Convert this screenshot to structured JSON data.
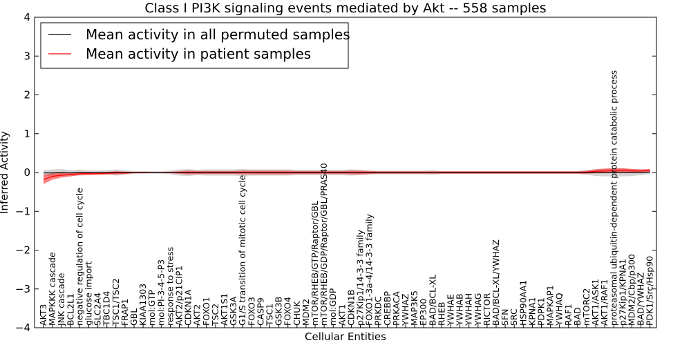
{
  "chart_data": {
    "type": "line",
    "title": "Class I PI3K signaling events mediated by Akt -- 558 samples",
    "xlabel": "Cellular Entities",
    "ylabel": "Inferred Activity",
    "ylim": [
      -4,
      4
    ],
    "yticks": [
      "−4",
      "−3",
      "−2",
      "−1",
      "0",
      "1",
      "2",
      "3",
      "4"
    ],
    "legend": {
      "position": "top-left",
      "entries": [
        {
          "label": "Mean activity in all permuted samples",
          "color": "#000000"
        },
        {
          "label": "Mean activity in patient samples",
          "color": "#ff0000"
        }
      ]
    },
    "categories": [
      "AKT3",
      "MAPKKK cascade",
      "JNK cascade",
      "BCL2L1",
      "negative regulation of cell cycle",
      "glucose import",
      "SLC2A4",
      "TBC1D4",
      "TSC1/TSC2",
      "FRAP1",
      "GBL",
      "KIAA1303",
      "mol:GTP",
      "mol:PI-3-4-5-P3",
      "response to stress",
      "AKT2/p21CIP1",
      "CDKN1A",
      "AKT2",
      "FOXO1",
      "TSC2",
      "AKT1S1",
      "GSK3A",
      "G1/S transition of mitotic cell cycle",
      "FOXO3",
      "CASP9",
      "TSC1",
      "GSK3B",
      "FOXO4",
      "CHUK",
      "MDM2",
      "mTOR/RHEB/GTP/Raptor/GBL",
      "mTOR/RHEB/GDP/Raptor/GBL/PRAS40",
      "mol:GDP",
      "AKT1",
      "CDKN1B",
      "p27Kip1/14-3-3 family",
      "FOXO1-3a-4/14-3-3 family",
      "PRKDC",
      "CREBBP",
      "PRKACA",
      "YWHAZ",
      "MAP3K5",
      "EP300",
      "BAD/BCL-XL",
      "RHEB",
      "YWHAE",
      "YWHAB",
      "YWHAH",
      "YWHAG",
      "RICTOR",
      "BAD/BCL-XL/YWHAZ",
      "SFN",
      "SRC",
      "HSP90AA1",
      "KPNA1",
      "PDPK1",
      "MAPKAP1",
      "YWHAQ",
      "RAF1",
      "BAD",
      "mTORC2",
      "AKT1/ASK1",
      "AKT1/RAF1",
      "proteasomal ubiquitin-dependent protein catabolic process",
      "p27Kip1/KPNA1",
      "MDM2/Cbp/p300",
      "BAD/YWHAZ",
      "PDK1/Src/Hsp90"
    ],
    "series": [
      {
        "name": "Mean activity in patient samples",
        "color": "#ff0000",
        "values": [
          -0.18,
          -0.1,
          -0.07,
          -0.05,
          -0.03,
          -0.03,
          -0.03,
          -0.02,
          -0.01,
          -0.01,
          0,
          0,
          0,
          0,
          0,
          0,
          0,
          0,
          0,
          0,
          0,
          0,
          0,
          0,
          0,
          0,
          0,
          0,
          0,
          0,
          0,
          0,
          0,
          0,
          0,
          0,
          0,
          0,
          0,
          0,
          0,
          0,
          0,
          0,
          0,
          0,
          0,
          0,
          0,
          0,
          0,
          0,
          0,
          0,
          0,
          0,
          0,
          0,
          0,
          0,
          0.01,
          0.03,
          0.04,
          0.05,
          0.05,
          0.04,
          0.04,
          0.05
        ],
        "band_halfwidth": [
          0.12,
          0.08,
          0.06,
          0.05,
          0.04,
          0.04,
          0.03,
          0.03,
          0.04,
          0.03,
          0.02,
          0.02,
          0.01,
          0.01,
          0.02,
          0.03,
          0.05,
          0.04,
          0.04,
          0.04,
          0.04,
          0.04,
          0.05,
          0.05,
          0.05,
          0.05,
          0.05,
          0.05,
          0.04,
          0.04,
          0.04,
          0.04,
          0.04,
          0.04,
          0.05,
          0.05,
          0.04,
          0.03,
          0.03,
          0.03,
          0.03,
          0.03,
          0.03,
          0.03,
          0.03,
          0.03,
          0.03,
          0.03,
          0.03,
          0.03,
          0.03,
          0.03,
          0.03,
          0.03,
          0.03,
          0.03,
          0.03,
          0.03,
          0.03,
          0.03,
          0.04,
          0.05,
          0.06,
          0.06,
          0.06,
          0.05,
          0.04,
          0.04
        ]
      },
      {
        "name": "Mean activity in all permuted samples",
        "color": "#000000",
        "band_color": "#c8c8c8",
        "values": [
          -0.01,
          -0.01,
          0,
          -0.01,
          0,
          0,
          0,
          0,
          0,
          0,
          0,
          0,
          0,
          0,
          0,
          0,
          0,
          0,
          0,
          0,
          0,
          0,
          0,
          0,
          0,
          0,
          0,
          0,
          0,
          0,
          0,
          0,
          0,
          0,
          0,
          0,
          0,
          0,
          0,
          0,
          0,
          0,
          0,
          0,
          0,
          0,
          0,
          0,
          0,
          0,
          0,
          0,
          0,
          0,
          0,
          0,
          0,
          0,
          0,
          0,
          0,
          0,
          0,
          0,
          0,
          0,
          0,
          0.01
        ],
        "band_halfwidth": [
          0.07,
          0.09,
          0.09,
          0.07,
          0.08,
          0.05,
          0.05,
          0.06,
          0.08,
          0.06,
          0.03,
          0.03,
          0.03,
          0.03,
          0.05,
          0.08,
          0.09,
          0.07,
          0.08,
          0.08,
          0.08,
          0.08,
          0.09,
          0.08,
          0.08,
          0.08,
          0.08,
          0.08,
          0.07,
          0.07,
          0.07,
          0.07,
          0.07,
          0.07,
          0.08,
          0.07,
          0.05,
          0.05,
          0.05,
          0.05,
          0.05,
          0.05,
          0.05,
          0.06,
          0.04,
          0.04,
          0.04,
          0.04,
          0.04,
          0.04,
          0.04,
          0.04,
          0.04,
          0.04,
          0.04,
          0.04,
          0.04,
          0.04,
          0.04,
          0.04,
          0.06,
          0.09,
          0.1,
          0.1,
          0.1,
          0.09,
          0.07,
          0.05
        ]
      }
    ]
  }
}
